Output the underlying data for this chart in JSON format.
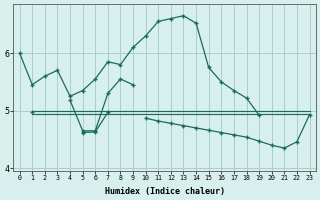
{
  "xlabel": "Humidex (Indice chaleur)",
  "x_values": [
    0,
    1,
    2,
    3,
    4,
    5,
    6,
    7,
    8,
    9,
    10,
    11,
    12,
    13,
    14,
    15,
    16,
    17,
    18,
    19,
    20,
    21,
    22,
    23
  ],
  "line_main": [
    6.0,
    5.45,
    5.6,
    5.7,
    5.25,
    5.35,
    5.55,
    5.85,
    5.8,
    6.1,
    6.3,
    6.55,
    6.6,
    6.65,
    6.52,
    5.75,
    5.5,
    5.35,
    5.22,
    4.92,
    null,
    null,
    null,
    null
  ],
  "line_zigzag": [
    null,
    null,
    null,
    null,
    5.18,
    4.65,
    4.65,
    5.3,
    5.55,
    5.45,
    null,
    null,
    null,
    null,
    null,
    null,
    null,
    null,
    null,
    null,
    null,
    null,
    null,
    null
  ],
  "line_low": [
    null,
    4.97,
    null,
    null,
    null,
    4.62,
    4.63,
    4.97,
    null,
    null,
    4.87,
    4.82,
    4.78,
    4.74,
    4.7,
    4.66,
    4.62,
    4.58,
    4.54,
    4.47,
    4.4,
    4.35,
    4.46,
    4.93
  ],
  "hline1_x": [
    1,
    23
  ],
  "hline1_y": [
    5.0,
    5.0
  ],
  "hline2_x": [
    1,
    23
  ],
  "hline2_y": [
    4.94,
    4.94
  ],
  "line_color": "#1a6b5a",
  "bg_color": "#d8f0ed",
  "grid_color": "#a8d0cc",
  "ylim": [
    3.95,
    6.85
  ],
  "xlim": [
    -0.5,
    23.5
  ],
  "yticks": [
    4,
    5,
    6
  ],
  "xticks": [
    0,
    1,
    2,
    3,
    4,
    5,
    6,
    7,
    8,
    9,
    10,
    11,
    12,
    13,
    14,
    15,
    16,
    17,
    18,
    19,
    20,
    21,
    22,
    23
  ]
}
